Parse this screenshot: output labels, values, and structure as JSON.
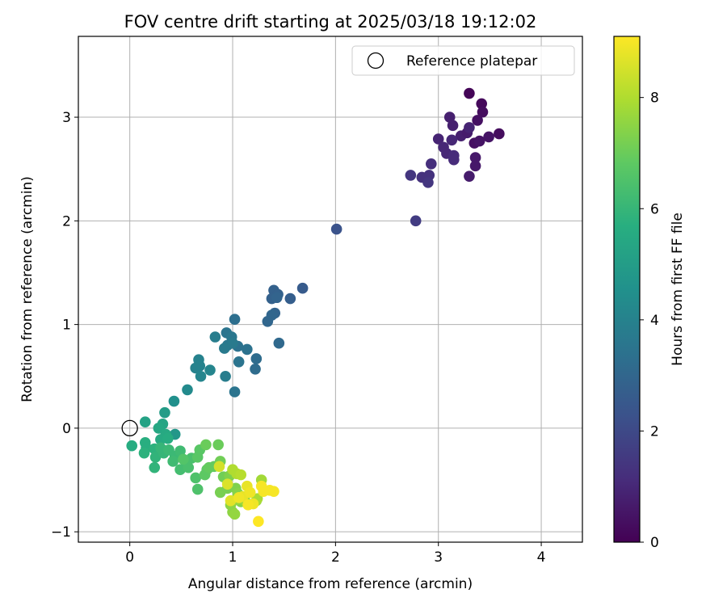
{
  "chart_data": {
    "type": "scatter",
    "title": "FOV centre drift starting at 2025/03/18 19:12:02",
    "xlabel": "Angular distance from reference (arcmin)",
    "ylabel": "Rotation from reference (arcmin)",
    "xlim": [
      -0.5,
      4.4
    ],
    "ylim": [
      -1.1,
      3.78
    ],
    "xticks": [
      "0",
      "1",
      "2",
      "3",
      "4"
    ],
    "yticks": [
      "−1",
      "0",
      "1",
      "2",
      "3"
    ],
    "grid": true,
    "legend": {
      "placement": "upper right",
      "label": "Reference platepar"
    },
    "reference_point": {
      "x": 0,
      "y": 0
    },
    "colorbar": {
      "label": "Hours from first FF file",
      "range": [
        0,
        9.1
      ],
      "ticks": [
        "0",
        "2",
        "4",
        "6",
        "8"
      ],
      "colormap": "viridis"
    },
    "series": [
      {
        "points": [
          {
            "x": 3.3,
            "y": 3.23,
            "h": 0.1
          },
          {
            "x": 3.42,
            "y": 3.13,
            "h": 0.2
          },
          {
            "x": 3.43,
            "y": 3.05,
            "h": 0.3
          },
          {
            "x": 3.38,
            "y": 2.97,
            "h": 0.4
          },
          {
            "x": 3.59,
            "y": 2.84,
            "h": 0.3
          },
          {
            "x": 3.49,
            "y": 2.81,
            "h": 0.5
          },
          {
            "x": 3.35,
            "y": 2.75,
            "h": 0.4
          },
          {
            "x": 3.4,
            "y": 2.77,
            "h": 0.5
          },
          {
            "x": 3.36,
            "y": 2.61,
            "h": 0.6
          },
          {
            "x": 3.36,
            "y": 2.53,
            "h": 0.6
          },
          {
            "x": 3.3,
            "y": 2.43,
            "h": 0.7
          },
          {
            "x": 3.11,
            "y": 3.0,
            "h": 0.8
          },
          {
            "x": 3.14,
            "y": 2.92,
            "h": 0.8
          },
          {
            "x": 3.22,
            "y": 2.82,
            "h": 0.8
          },
          {
            "x": 3.28,
            "y": 2.85,
            "h": 0.7
          },
          {
            "x": 3.3,
            "y": 2.9,
            "h": 0.9
          },
          {
            "x": 3.0,
            "y": 2.79,
            "h": 0.9
          },
          {
            "x": 3.05,
            "y": 2.71,
            "h": 1.0
          },
          {
            "x": 3.08,
            "y": 2.65,
            "h": 1.0
          },
          {
            "x": 3.13,
            "y": 2.78,
            "h": 1.0
          },
          {
            "x": 3.15,
            "y": 2.63,
            "h": 1.1
          },
          {
            "x": 3.15,
            "y": 2.59,
            "h": 1.1
          },
          {
            "x": 2.93,
            "y": 2.55,
            "h": 1.2
          },
          {
            "x": 2.91,
            "y": 2.44,
            "h": 1.3
          },
          {
            "x": 2.84,
            "y": 2.42,
            "h": 1.3
          },
          {
            "x": 2.73,
            "y": 2.44,
            "h": 1.4
          },
          {
            "x": 2.9,
            "y": 2.37,
            "h": 1.4
          },
          {
            "x": 2.78,
            "y": 2.0,
            "h": 1.6
          },
          {
            "x": 2.01,
            "y": 1.92,
            "h": 2.3
          },
          {
            "x": 1.68,
            "y": 1.35,
            "h": 2.6
          },
          {
            "x": 1.56,
            "y": 1.25,
            "h": 2.7
          },
          {
            "x": 1.4,
            "y": 1.33,
            "h": 2.8
          },
          {
            "x": 1.44,
            "y": 1.29,
            "h": 2.8
          },
          {
            "x": 1.38,
            "y": 1.25,
            "h": 2.8
          },
          {
            "x": 1.43,
            "y": 1.26,
            "h": 2.9
          },
          {
            "x": 1.41,
            "y": 1.11,
            "h": 2.9
          },
          {
            "x": 1.38,
            "y": 1.09,
            "h": 3.0
          },
          {
            "x": 1.34,
            "y": 1.03,
            "h": 3.0
          },
          {
            "x": 1.45,
            "y": 0.82,
            "h": 3.1
          },
          {
            "x": 1.23,
            "y": 0.67,
            "h": 3.2
          },
          {
            "x": 1.22,
            "y": 0.57,
            "h": 3.2
          },
          {
            "x": 1.02,
            "y": 1.05,
            "h": 3.3
          },
          {
            "x": 1.05,
            "y": 0.79,
            "h": 3.4
          },
          {
            "x": 1.14,
            "y": 0.76,
            "h": 3.4
          },
          {
            "x": 1.06,
            "y": 0.64,
            "h": 3.5
          },
          {
            "x": 1.02,
            "y": 0.35,
            "h": 3.5
          },
          {
            "x": 0.94,
            "y": 0.92,
            "h": 3.5
          },
          {
            "x": 0.99,
            "y": 0.88,
            "h": 3.6
          },
          {
            "x": 0.95,
            "y": 0.8,
            "h": 3.6
          },
          {
            "x": 0.92,
            "y": 0.77,
            "h": 3.7
          },
          {
            "x": 1.0,
            "y": 0.82,
            "h": 3.7
          },
          {
            "x": 0.83,
            "y": 0.88,
            "h": 3.8
          },
          {
            "x": 0.93,
            "y": 0.5,
            "h": 3.8
          },
          {
            "x": 0.67,
            "y": 0.66,
            "h": 4.0
          },
          {
            "x": 0.68,
            "y": 0.6,
            "h": 4.0
          },
          {
            "x": 0.64,
            "y": 0.58,
            "h": 4.0
          },
          {
            "x": 0.78,
            "y": 0.56,
            "h": 4.1
          },
          {
            "x": 0.69,
            "y": 0.5,
            "h": 4.1
          },
          {
            "x": 0.56,
            "y": 0.37,
            "h": 4.3
          },
          {
            "x": 0.43,
            "y": 0.26,
            "h": 4.5
          },
          {
            "x": 0.44,
            "y": -0.06,
            "h": 4.8
          },
          {
            "x": 0.34,
            "y": 0.15,
            "h": 5.0
          },
          {
            "x": 0.15,
            "y": 0.06,
            "h": 5.2
          },
          {
            "x": 0.32,
            "y": 0.04,
            "h": 5.3
          },
          {
            "x": 0.28,
            "y": 0.0,
            "h": 5.4
          },
          {
            "x": 0.35,
            "y": -0.06,
            "h": 5.5
          },
          {
            "x": 0.3,
            "y": -0.11,
            "h": 5.5
          },
          {
            "x": 0.37,
            "y": -0.1,
            "h": 5.6
          },
          {
            "x": 0.02,
            "y": -0.17,
            "h": 5.6
          },
          {
            "x": 0.15,
            "y": -0.14,
            "h": 5.7
          },
          {
            "x": 0.16,
            "y": -0.19,
            "h": 5.7
          },
          {
            "x": 0.14,
            "y": -0.24,
            "h": 5.8
          },
          {
            "x": 0.24,
            "y": -0.2,
            "h": 5.8
          },
          {
            "x": 0.25,
            "y": -0.28,
            "h": 5.9
          },
          {
            "x": 0.24,
            "y": -0.38,
            "h": 5.9
          },
          {
            "x": 0.33,
            "y": -0.24,
            "h": 6.0
          },
          {
            "x": 0.3,
            "y": -0.19,
            "h": 6.0
          },
          {
            "x": 0.38,
            "y": -0.21,
            "h": 6.1
          },
          {
            "x": 0.44,
            "y": -0.27,
            "h": 6.1
          },
          {
            "x": 0.42,
            "y": -0.32,
            "h": 6.2
          },
          {
            "x": 0.49,
            "y": -0.22,
            "h": 6.2
          },
          {
            "x": 0.49,
            "y": -0.4,
            "h": 6.3
          },
          {
            "x": 0.55,
            "y": -0.33,
            "h": 6.3
          },
          {
            "x": 0.57,
            "y": -0.38,
            "h": 6.4
          },
          {
            "x": 0.6,
            "y": -0.29,
            "h": 6.4
          },
          {
            "x": 0.64,
            "y": -0.48,
            "h": 6.5
          },
          {
            "x": 0.66,
            "y": -0.59,
            "h": 6.5
          },
          {
            "x": 0.52,
            "y": -0.3,
            "h": 6.6
          },
          {
            "x": 0.68,
            "y": -0.21,
            "h": 6.7
          },
          {
            "x": 0.66,
            "y": -0.28,
            "h": 6.7
          },
          {
            "x": 0.73,
            "y": -0.45,
            "h": 6.8
          },
          {
            "x": 0.75,
            "y": -0.4,
            "h": 6.8
          },
          {
            "x": 0.77,
            "y": -0.38,
            "h": 6.9
          },
          {
            "x": 0.82,
            "y": -0.37,
            "h": 6.9
          },
          {
            "x": 0.74,
            "y": -0.16,
            "h": 7.0
          },
          {
            "x": 0.86,
            "y": -0.16,
            "h": 7.0
          },
          {
            "x": 0.88,
            "y": -0.32,
            "h": 7.1
          },
          {
            "x": 0.91,
            "y": -0.47,
            "h": 7.1
          },
          {
            "x": 0.88,
            "y": -0.62,
            "h": 7.2
          },
          {
            "x": 0.95,
            "y": -0.58,
            "h": 7.2
          },
          {
            "x": 0.97,
            "y": -0.46,
            "h": 7.3
          },
          {
            "x": 1.03,
            "y": -0.58,
            "h": 7.3
          },
          {
            "x": 1.05,
            "y": -0.63,
            "h": 7.4
          },
          {
            "x": 1.08,
            "y": -0.71,
            "h": 7.4
          },
          {
            "x": 1.0,
            "y": -0.81,
            "h": 7.5
          },
          {
            "x": 0.98,
            "y": -0.74,
            "h": 7.5
          },
          {
            "x": 1.04,
            "y": -0.69,
            "h": 7.6
          },
          {
            "x": 1.02,
            "y": -0.83,
            "h": 7.6
          },
          {
            "x": 1.12,
            "y": -0.7,
            "h": 7.7
          },
          {
            "x": 1.23,
            "y": -0.7,
            "h": 7.7
          },
          {
            "x": 1.28,
            "y": -0.5,
            "h": 7.8
          },
          {
            "x": 1.24,
            "y": -0.68,
            "h": 7.9
          },
          {
            "x": 1.0,
            "y": -0.4,
            "h": 8.0
          },
          {
            "x": 1.04,
            "y": -0.44,
            "h": 8.0
          },
          {
            "x": 1.08,
            "y": -0.45,
            "h": 8.1
          },
          {
            "x": 0.87,
            "y": -0.37,
            "h": 8.5
          },
          {
            "x": 0.95,
            "y": -0.54,
            "h": 8.6
          },
          {
            "x": 0.98,
            "y": -0.7,
            "h": 8.7
          },
          {
            "x": 1.1,
            "y": -0.66,
            "h": 8.8
          },
          {
            "x": 1.14,
            "y": -0.56,
            "h": 8.8
          },
          {
            "x": 1.17,
            "y": -0.62,
            "h": 8.9
          },
          {
            "x": 1.2,
            "y": -0.73,
            "h": 8.9
          },
          {
            "x": 1.28,
            "y": -0.56,
            "h": 9.0
          },
          {
            "x": 1.3,
            "y": -0.61,
            "h": 9.0
          },
          {
            "x": 1.36,
            "y": -0.6,
            "h": 9.0
          },
          {
            "x": 1.4,
            "y": -0.61,
            "h": 9.0
          },
          {
            "x": 1.25,
            "y": -0.9,
            "h": 9.1
          },
          {
            "x": 1.15,
            "y": -0.74,
            "h": 9.0
          },
          {
            "x": 1.06,
            "y": -0.67,
            "h": 8.9
          }
        ]
      }
    ]
  }
}
